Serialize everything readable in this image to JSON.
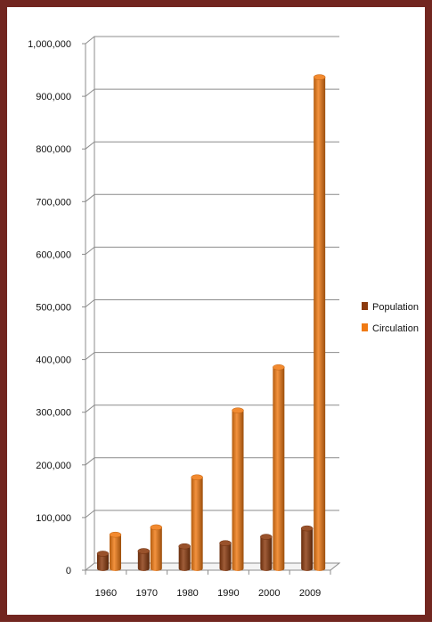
{
  "chart_data": {
    "type": "bar",
    "style": "3d-cylinder",
    "categories": [
      "1960",
      "1970",
      "1980",
      "1990",
      "2000",
      "2009"
    ],
    "series": [
      {
        "name": "Population",
        "color": "#8B3A0E",
        "values": [
          28000,
          33000,
          42000,
          48000,
          60000,
          76000
        ]
      },
      {
        "name": "Circulation",
        "color": "#F07A14",
        "values": [
          64000,
          78000,
          173000,
          300000,
          382000,
          933000
        ]
      }
    ],
    "ylim": [
      0,
      1000000
    ],
    "y_ticks": [
      {
        "value": 0,
        "label": "0"
      },
      {
        "value": 100000,
        "label": "100,000"
      },
      {
        "value": 200000,
        "label": "200,000"
      },
      {
        "value": 300000,
        "label": "300,000"
      },
      {
        "value": 400000,
        "label": "400,000"
      },
      {
        "value": 500000,
        "label": "500,000"
      },
      {
        "value": 600000,
        "label": "600,000"
      },
      {
        "value": 700000,
        "label": "700,000"
      },
      {
        "value": 800000,
        "label": "800,000"
      },
      {
        "value": 900000,
        "label": "900,000"
      },
      {
        "value": 1000000,
        "label": "1,000,000"
      }
    ],
    "title": "",
    "xlabel": "",
    "ylabel": "",
    "grid": true,
    "legend_position": "right",
    "frame_color": "#722620"
  }
}
